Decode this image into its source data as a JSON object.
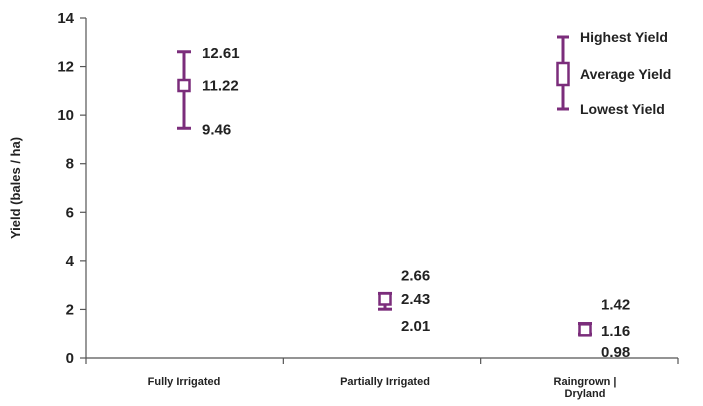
{
  "chart_data": {
    "type": "scatter",
    "subtype": "high-low-average",
    "ylabel": "Yield (bales / ha)",
    "xlabel": "",
    "ylim": [
      0,
      14
    ],
    "yticks": [
      0,
      2,
      4,
      6,
      8,
      10,
      12,
      14
    ],
    "ytick_labels": [
      "0",
      "2",
      "4",
      "6",
      "8",
      "10",
      "12",
      "14"
    ],
    "categories": [
      "Fully Irrigated",
      "Partially Irrigated",
      "Raingrown | Dryland"
    ],
    "category_lines": [
      [
        "Fully Irrigated"
      ],
      [
        "Partially Irrigated"
      ],
      [
        "Raingrown |",
        "Dryland"
      ]
    ],
    "series": [
      {
        "name": "Highest Yield",
        "values": [
          12.61,
          2.66,
          1.42
        ],
        "labels": [
          "12.61",
          "2.66",
          "1.42"
        ]
      },
      {
        "name": "Average Yield",
        "values": [
          11.22,
          2.43,
          1.16
        ],
        "labels": [
          "11.22",
          "2.43",
          "1.16"
        ]
      },
      {
        "name": "Lowest Yield",
        "values": [
          9.46,
          2.01,
          0.98
        ],
        "labels": [
          "9.46",
          "2.01",
          "0.98"
        ]
      }
    ],
    "legend": {
      "position": "top-right",
      "entries": [
        "Highest Yield",
        "Average Yield",
        "Lowest Yield"
      ]
    },
    "grid": false,
    "colors": {
      "marker": "#7b2d7b",
      "axis": "#555555",
      "text": "#222222"
    }
  }
}
